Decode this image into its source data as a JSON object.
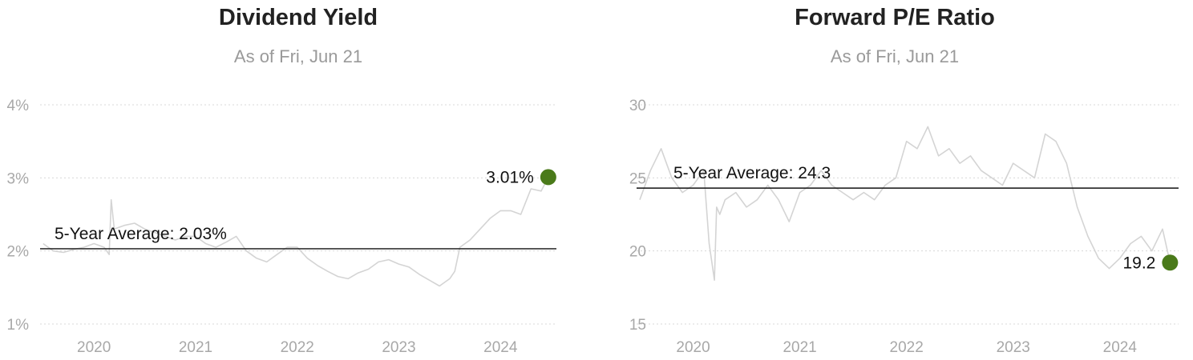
{
  "chart_data": [
    {
      "type": "line",
      "title": "Dividend Yield",
      "subtitle": "As of Fri, Jun 21",
      "xlim": [
        2019.47,
        2024.55
      ],
      "x_ticks": [
        2020,
        2021,
        2022,
        2023,
        2024
      ],
      "x_tick_labels": [
        "2020",
        "2021",
        "2022",
        "2023",
        "2024"
      ],
      "ylim": [
        1,
        4
      ],
      "y_ticks": [
        1,
        2,
        3,
        4
      ],
      "y_tick_labels": [
        "1%",
        "2%",
        "3%",
        "4%"
      ],
      "grid": true,
      "series": [
        {
          "x": [
            2019.5,
            2019.6,
            2019.7,
            2019.8,
            2019.9,
            2020.0,
            2020.1,
            2020.15,
            2020.17,
            2020.2,
            2020.3,
            2020.4,
            2020.5,
            2020.6,
            2020.7,
            2020.8,
            2020.9,
            2021.0,
            2021.1,
            2021.2,
            2021.3,
            2021.4,
            2021.5,
            2021.6,
            2021.7,
            2021.8,
            2021.9,
            2022.0,
            2022.1,
            2022.2,
            2022.3,
            2022.4,
            2022.5,
            2022.6,
            2022.7,
            2022.8,
            2022.9,
            2023.0,
            2023.1,
            2023.2,
            2023.3,
            2023.4,
            2023.5,
            2023.55,
            2023.6,
            2023.7,
            2023.8,
            2023.9,
            2024.0,
            2024.1,
            2024.2,
            2024.3,
            2024.4,
            2024.47
          ],
          "y": [
            2.1,
            2.0,
            1.98,
            2.02,
            2.05,
            2.1,
            2.05,
            1.95,
            2.7,
            2.3,
            2.35,
            2.38,
            2.3,
            2.25,
            2.2,
            2.15,
            2.2,
            2.2,
            2.1,
            2.05,
            2.12,
            2.2,
            2.0,
            1.9,
            1.85,
            1.95,
            2.05,
            2.05,
            1.9,
            1.8,
            1.72,
            1.65,
            1.62,
            1.7,
            1.75,
            1.85,
            1.88,
            1.82,
            1.78,
            1.68,
            1.6,
            1.52,
            1.62,
            1.72,
            2.05,
            2.15,
            2.3,
            2.45,
            2.55,
            2.55,
            2.5,
            2.85,
            2.82,
            3.01
          ]
        }
      ],
      "average": {
        "label": "5-Year Average: 2.03%",
        "value": 2.03
      },
      "latest": {
        "label": "3.01%",
        "x": 2024.47,
        "y": 3.01
      }
    },
    {
      "type": "line",
      "title": "Forward P/E Ratio",
      "subtitle": "As of Fri, Jun 21",
      "xlim": [
        2019.47,
        2024.55
      ],
      "x_ticks": [
        2020,
        2021,
        2022,
        2023,
        2024
      ],
      "x_tick_labels": [
        "2020",
        "2021",
        "2022",
        "2023",
        "2024"
      ],
      "ylim": [
        15,
        30
      ],
      "y_ticks": [
        15,
        20,
        25,
        30
      ],
      "y_tick_labels": [
        "15",
        "20",
        "25",
        "30"
      ],
      "grid": true,
      "series": [
        {
          "x": [
            2019.5,
            2019.6,
            2019.7,
            2019.8,
            2019.9,
            2020.0,
            2020.1,
            2020.15,
            2020.2,
            2020.22,
            2020.25,
            2020.3,
            2020.4,
            2020.5,
            2020.6,
            2020.7,
            2020.8,
            2020.9,
            2021.0,
            2021.1,
            2021.2,
            2021.3,
            2021.4,
            2021.5,
            2021.6,
            2021.7,
            2021.8,
            2021.9,
            2022.0,
            2022.1,
            2022.2,
            2022.3,
            2022.4,
            2022.5,
            2022.6,
            2022.7,
            2022.8,
            2022.9,
            2023.0,
            2023.1,
            2023.2,
            2023.3,
            2023.4,
            2023.5,
            2023.6,
            2023.7,
            2023.8,
            2023.9,
            2024.0,
            2024.1,
            2024.2,
            2024.3,
            2024.4,
            2024.47
          ],
          "y": [
            23.5,
            25.5,
            27.0,
            25.0,
            24.0,
            24.5,
            25.5,
            20.5,
            18.0,
            23.0,
            22.5,
            23.5,
            24.0,
            23.0,
            23.5,
            24.5,
            23.5,
            22.0,
            24.0,
            24.5,
            25.5,
            24.5,
            24.0,
            23.5,
            24.0,
            23.5,
            24.5,
            25.0,
            27.5,
            27.0,
            28.5,
            26.5,
            27.0,
            26.0,
            26.5,
            25.5,
            25.0,
            24.5,
            26.0,
            25.5,
            25.0,
            28.0,
            27.5,
            26.0,
            23.0,
            21.0,
            19.5,
            18.8,
            19.5,
            20.5,
            21.0,
            20.0,
            21.5,
            19.2
          ]
        }
      ],
      "average": {
        "label": "5-Year Average: 24.3",
        "value": 24.3
      },
      "latest": {
        "label": "19.2",
        "x": 2024.47,
        "y": 19.2
      }
    }
  ]
}
